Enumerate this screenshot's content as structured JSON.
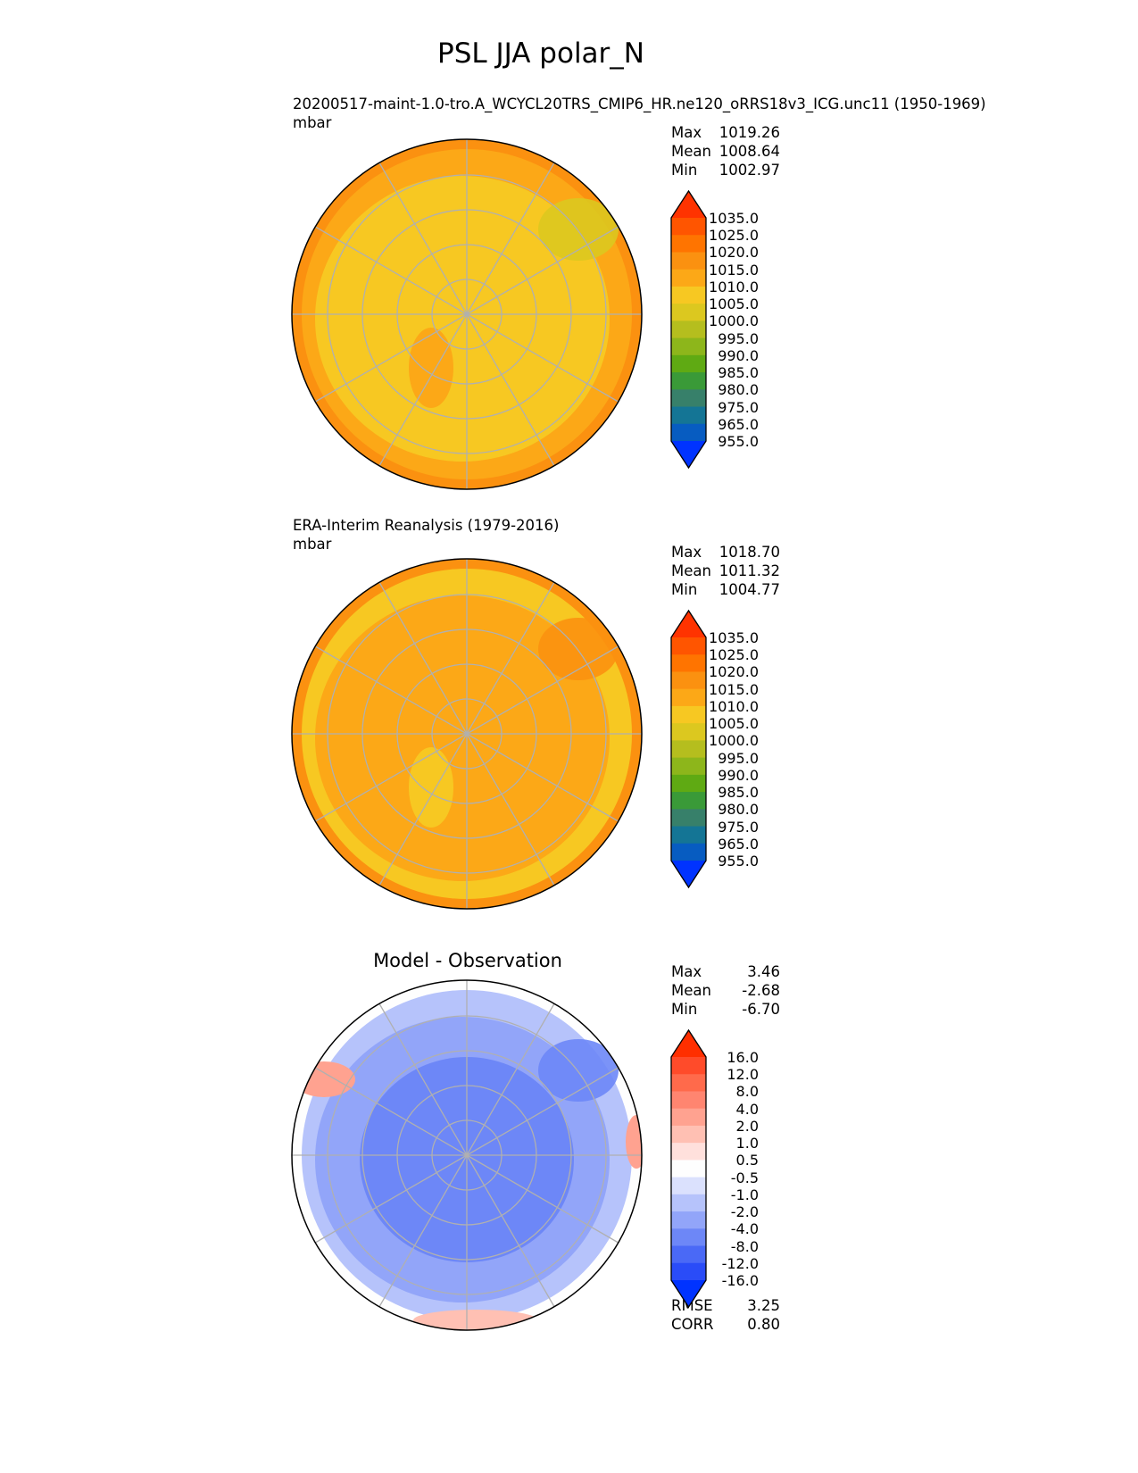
{
  "title": "PSL JJA polar_N",
  "panels": [
    {
      "subtitle": "20200517-maint-1.0-tro.A_WCYCL20TRS_CMIP6_HR.ne120_oRRS18v3_ICG.unc11 (1950-1969)",
      "units": "mbar",
      "stats": [
        {
          "label": "Max",
          "value": "1019.26"
        },
        {
          "label": "Mean",
          "value": "1008.64"
        },
        {
          "label": "Min",
          "value": "1002.97"
        }
      ],
      "colorbar": {
        "labels": [
          "1035.0",
          "1025.0",
          "1020.0",
          "1015.0",
          "1010.0",
          "1005.0",
          "1000.0",
          "995.0",
          "990.0",
          "985.0",
          "980.0",
          "975.0",
          "965.0",
          "955.0"
        ],
        "colors": [
          "#ff3300",
          "#ff5500",
          "#ff7400",
          "#fb9110",
          "#fca817",
          "#f7c822",
          "#dcc81f",
          "#b5be1e",
          "#8db61b",
          "#5faa13",
          "#3a9a38",
          "#37806a",
          "#147595",
          "#075cc1",
          "#0033ff"
        ]
      },
      "field": {
        "base": "#f7c822",
        "outer": "#fca817",
        "edge": "#fb9110",
        "accent": "#dcc81f"
      }
    },
    {
      "subtitle": "ERA-Interim Reanalysis (1979-2016)",
      "units": "mbar",
      "stats": [
        {
          "label": "Max",
          "value": "1018.70"
        },
        {
          "label": "Mean",
          "value": "1011.32"
        },
        {
          "label": "Min",
          "value": "1004.77"
        }
      ],
      "colorbar": {
        "labels": [
          "1035.0",
          "1025.0",
          "1020.0",
          "1015.0",
          "1010.0",
          "1005.0",
          "1000.0",
          "995.0",
          "990.0",
          "985.0",
          "980.0",
          "975.0",
          "965.0",
          "955.0"
        ],
        "colors": [
          "#ff3300",
          "#ff5500",
          "#ff7400",
          "#fb9110",
          "#fca817",
          "#f7c822",
          "#dcc81f",
          "#b5be1e",
          "#8db61b",
          "#5faa13",
          "#3a9a38",
          "#37806a",
          "#147595",
          "#075cc1",
          "#0033ff"
        ]
      },
      "field": {
        "base": "#fca817",
        "outer": "#f7c822",
        "edge": "#fb9110",
        "accent": "#fb9110"
      }
    },
    {
      "subtitle": "Model - Observation",
      "stats": [
        {
          "label": "Max",
          "value": "3.46"
        },
        {
          "label": "Mean",
          "value": "-2.68"
        },
        {
          "label": "Min",
          "value": "-6.70"
        }
      ],
      "colorbar": {
        "labels": [
          "16.0",
          "12.0",
          "8.0",
          "4.0",
          "2.0",
          "1.0",
          "0.5",
          "-0.5",
          "-1.0",
          "-2.0",
          "-4.0",
          "-8.0",
          "-12.0",
          "-16.0"
        ],
        "colors": [
          "#ff2f00",
          "#ff4b2a",
          "#ff6a4b",
          "#ff8570",
          "#ffa290",
          "#ffc0b3",
          "#ffe0dc",
          "#fefefe",
          "#dbe1fd",
          "#b6c3fb",
          "#92a5f9",
          "#6d87f7",
          "#4a69f6",
          "#2a4cf8",
          "#0033ff"
        ]
      },
      "field": {
        "base": "#92a5f9",
        "outer": "#b6c3fb",
        "edge": "#fefefe",
        "accent": "#6d87f7"
      },
      "metrics": [
        {
          "label": "RMSE",
          "value": "3.25"
        },
        {
          "label": "CORR",
          "value": "0.80"
        }
      ]
    }
  ]
}
